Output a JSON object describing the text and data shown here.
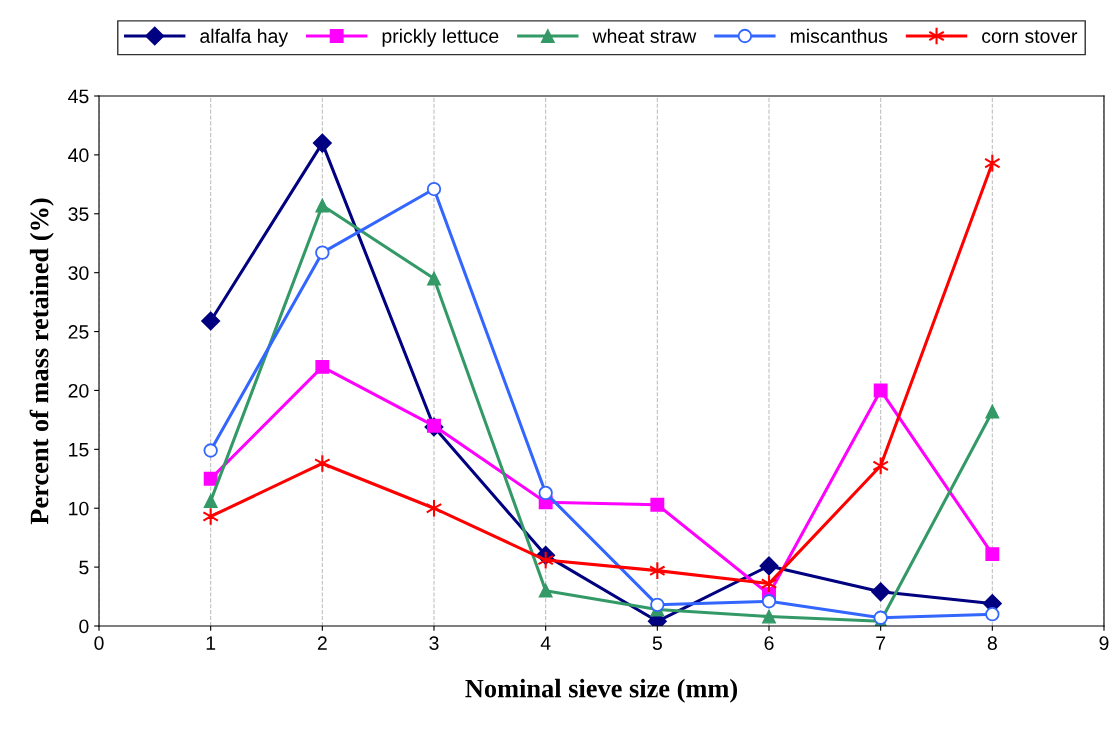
{
  "chart_data": {
    "type": "line",
    "xlabel": "Nominal sieve size (mm)",
    "ylabel": "Percent of mass retained (%)",
    "x": [
      1,
      2,
      3,
      4,
      5,
      6,
      7,
      8
    ],
    "series": [
      {
        "name": "alfalfa hay",
        "color": "#000080",
        "marker": "diamond",
        "values": [
          25.9,
          41.0,
          16.9,
          6.0,
          0.4,
          5.1,
          2.9,
          1.9
        ]
      },
      {
        "name": "prickly lettuce",
        "color": "#ff00ff",
        "marker": "square",
        "values": [
          12.5,
          22.0,
          17.0,
          10.5,
          10.3,
          2.7,
          20.0,
          6.1
        ]
      },
      {
        "name": "wheat straw",
        "color": "#339966",
        "marker": "triangle",
        "values": [
          10.6,
          35.7,
          29.5,
          3.0,
          1.4,
          0.8,
          0.4,
          18.2
        ]
      },
      {
        "name": "miscanthus",
        "color": "#3366ff",
        "marker": "circle",
        "values": [
          14.9,
          31.7,
          37.1,
          11.3,
          1.8,
          2.1,
          0.7,
          1.0
        ]
      },
      {
        "name": "corn stover",
        "color": "#ff0000",
        "marker": "cross",
        "values": [
          9.3,
          13.8,
          10.0,
          5.6,
          4.7,
          3.6,
          13.6,
          39.3
        ]
      }
    ],
    "xlim": [
      0,
      9
    ],
    "xticks": [
      0,
      1,
      2,
      3,
      4,
      5,
      6,
      7,
      8,
      9
    ],
    "ylim": [
      0,
      45
    ],
    "yticks": [
      0,
      5,
      10,
      15,
      20,
      25,
      30,
      35,
      40,
      45
    ],
    "grid": "x",
    "legend": "top",
    "line_style": "solid"
  }
}
